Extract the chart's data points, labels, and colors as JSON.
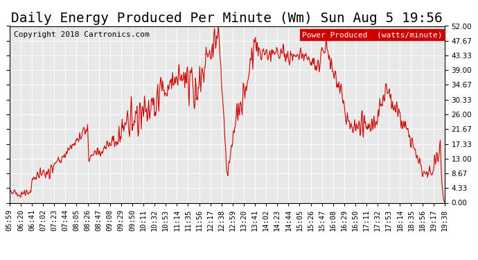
{
  "title": "Daily Energy Produced Per Minute (Wm) Sun Aug 5 19:56",
  "copyright": "Copyright 2018 Cartronics.com",
  "legend_label": "Power Produced  (watts/minute)",
  "legend_bg": "#cc0000",
  "legend_fg": "#ffffff",
  "line_color": "#cc0000",
  "bg_color": "#ffffff",
  "plot_bg": "#e8e8e8",
  "grid_color": "#ffffff",
  "ylabel_right": true,
  "ymin": 0.0,
  "ymax": 52.0,
  "yticks": [
    0.0,
    4.33,
    8.67,
    13.0,
    17.33,
    21.67,
    26.0,
    30.33,
    34.67,
    39.0,
    43.33,
    47.67,
    52.0
  ],
  "xtick_labels": [
    "05:59",
    "06:20",
    "06:41",
    "07:02",
    "07:23",
    "07:44",
    "08:05",
    "08:26",
    "08:47",
    "09:08",
    "09:29",
    "09:50",
    "10:11",
    "10:32",
    "10:53",
    "11:14",
    "11:35",
    "11:56",
    "12:17",
    "12:38",
    "12:59",
    "13:20",
    "13:41",
    "14:02",
    "14:23",
    "14:44",
    "15:05",
    "15:26",
    "15:47",
    "16:08",
    "16:29",
    "16:50",
    "17:11",
    "17:32",
    "17:53",
    "18:14",
    "18:35",
    "18:56",
    "19:17",
    "19:38"
  ],
  "title_fontsize": 14,
  "copyright_fontsize": 8,
  "tick_fontsize": 7.5
}
